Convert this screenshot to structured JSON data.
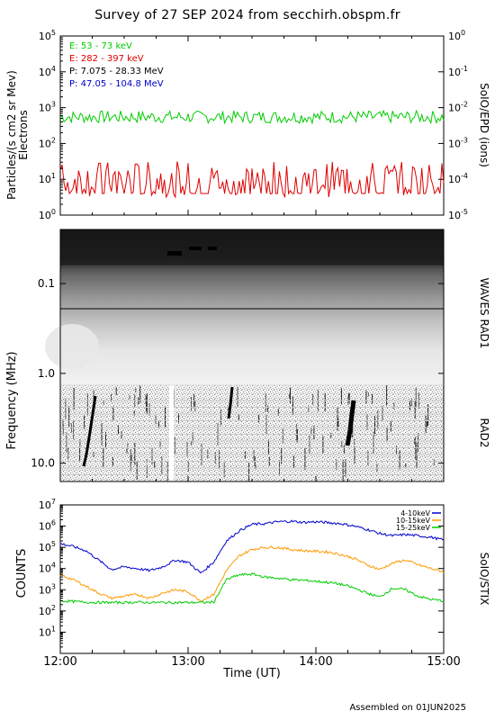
{
  "title": "Survey of 27 SEP 2024 from secchirh.obspm.fr",
  "footer": "Assembled on 01JUN2025",
  "chart_data": [
    {
      "type": "line",
      "panel": "SoIO/EPD",
      "ylabel_left": "Particles/(s cm2 sr Mev)",
      "ylabel_left2": "Electrons",
      "ylabel_right": "SoIO/EPD (ions)",
      "yscale": "log",
      "ylim_left": [
        1,
        100000
      ],
      "ylim_right": [
        1e-05,
        1
      ],
      "left_ticks": [
        {
          "v": 1,
          "b": "10",
          "e": "0"
        },
        {
          "v": 10,
          "b": "10",
          "e": "1"
        },
        {
          "v": 100,
          "b": "10",
          "e": "2"
        },
        {
          "v": 1000,
          "b": "10",
          "e": "3"
        },
        {
          "v": 10000,
          "b": "10",
          "e": "4"
        },
        {
          "v": 100000,
          "b": "10",
          "e": "5"
        }
      ],
      "right_ticks": [
        {
          "v": 1e-05,
          "b": "10",
          "e": "-5"
        },
        {
          "v": 0.0001,
          "b": "10",
          "e": "-4"
        },
        {
          "v": 0.001,
          "b": "10",
          "e": "-3"
        },
        {
          "v": 0.01,
          "b": "10",
          "e": "-2"
        },
        {
          "v": 0.1,
          "b": "10",
          "e": "-1"
        },
        {
          "v": 1,
          "b": "10",
          "e": "0"
        }
      ],
      "legend_position": "top-left",
      "series": [
        {
          "name": "E: 53 - 73 keV",
          "color": "#00cc00",
          "level": 550,
          "jitter": 0.35
        },
        {
          "name": "E: 282 - 397 keV",
          "color": "#dd0000",
          "level": 10,
          "jitter": 1.0
        },
        {
          "name": "P: 7.075 - 28.33 MeV",
          "color": "#000000"
        },
        {
          "name": "P: 47.05 - 104.8 MeV",
          "color": "#0000cc"
        }
      ]
    },
    {
      "type": "heatmap",
      "panel": "WAVES RAD1 / RAD2",
      "ylabel": "Frequency (MHz)",
      "yscale": "log",
      "ylim": [
        0.025,
        16
      ],
      "label_rad1": "WAVES RAD1",
      "label_rad2": "RAD2",
      "yticks": [
        {
          "v": 0.1,
          "label": "0.1"
        },
        {
          "v": 1.0,
          "label": "1.0"
        },
        {
          "v": 10.0,
          "label": "10.0"
        }
      ]
    },
    {
      "type": "line",
      "panel": "SoIO/STIX",
      "ylabel": "COUNTS",
      "ylabel_right": "SoIO/STIX",
      "xlabel": "Time (UT)",
      "yscale": "log",
      "ylim": [
        1,
        10000000
      ],
      "yticks": [
        {
          "v": 10,
          "b": "10",
          "e": "1"
        },
        {
          "v": 100,
          "b": "10",
          "e": "2"
        },
        {
          "v": 1000,
          "b": "10",
          "e": "3"
        },
        {
          "v": 10000,
          "b": "10",
          "e": "4"
        },
        {
          "v": 100000,
          "b": "10",
          "e": "5"
        },
        {
          "v": 1000000,
          "b": "10",
          "e": "6"
        },
        {
          "v": 10000000,
          "b": "10",
          "e": "7"
        }
      ],
      "x_hours": [
        12,
        15
      ],
      "x_ticks": [
        {
          "h": 12,
          "label": "12:00"
        },
        {
          "h": 13,
          "label": "13:00"
        },
        {
          "h": 14,
          "label": "14:00"
        },
        {
          "h": 15,
          "label": "15:00"
        }
      ],
      "legend_position": "top-right",
      "series": [
        {
          "name": "4-10keV",
          "color": "#0000cc",
          "x": [
            12.0,
            12.1,
            12.2,
            12.3,
            12.4,
            12.5,
            12.6,
            12.7,
            12.8,
            12.9,
            13.0,
            13.1,
            13.2,
            13.3,
            13.4,
            13.5,
            13.6,
            13.7,
            13.8,
            13.9,
            14.0,
            14.1,
            14.2,
            14.3,
            14.4,
            14.5,
            14.6,
            14.7,
            14.8,
            14.9,
            15.0
          ],
          "values": [
            150000,
            110000,
            70000,
            25000,
            9000,
            12000,
            10000,
            8000,
            12000,
            25000,
            20000,
            6000,
            20000,
            200000,
            600000,
            1200000,
            1300000,
            1600000,
            1700000,
            1500000,
            1600000,
            1450000,
            1300000,
            1000000,
            700000,
            450000,
            350000,
            400000,
            350000,
            300000,
            220000
          ]
        },
        {
          "name": "10-15keV",
          "color": "#ff9900",
          "x": [
            12.0,
            12.1,
            12.2,
            12.3,
            12.4,
            12.5,
            12.6,
            12.7,
            12.8,
            12.9,
            13.0,
            13.1,
            13.2,
            13.3,
            13.4,
            13.5,
            13.6,
            13.7,
            13.8,
            13.9,
            14.0,
            14.1,
            14.2,
            14.3,
            14.4,
            14.5,
            14.6,
            14.7,
            14.8,
            14.9,
            15.0
          ],
          "values": [
            5000,
            3000,
            1500,
            700,
            400,
            500,
            600,
            400,
            700,
            1000,
            800,
            300,
            600,
            8000,
            40000,
            80000,
            100000,
            100000,
            80000,
            70000,
            65000,
            60000,
            45000,
            30000,
            15000,
            9000,
            18000,
            25000,
            15000,
            10000,
            7000
          ]
        },
        {
          "name": "15-25keV",
          "color": "#00cc00",
          "x": [
            12.0,
            12.1,
            12.2,
            12.3,
            12.4,
            12.5,
            12.6,
            12.7,
            12.8,
            12.9,
            13.0,
            13.1,
            13.2,
            13.3,
            13.4,
            13.5,
            13.6,
            13.7,
            13.8,
            13.9,
            14.0,
            14.1,
            14.2,
            14.3,
            14.4,
            14.5,
            14.6,
            14.7,
            14.8,
            14.9,
            15.0
          ],
          "values": [
            300,
            280,
            260,
            250,
            250,
            250,
            260,
            250,
            250,
            250,
            250,
            250,
            260,
            3000,
            5000,
            5500,
            4000,
            3500,
            3000,
            2800,
            2500,
            2200,
            1800,
            1200,
            700,
            450,
            1200,
            1000,
            500,
            350,
            300
          ]
        }
      ]
    }
  ]
}
